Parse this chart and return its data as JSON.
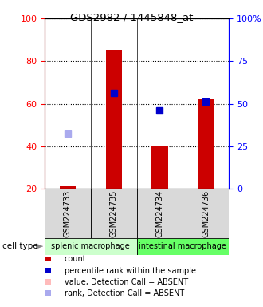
{
  "title": "GDS2982 / 1445848_at",
  "samples": [
    "GSM224733",
    "GSM224735",
    "GSM224734",
    "GSM224736"
  ],
  "cell_type_groups": [
    {
      "label": "splenic macrophage",
      "start": 0,
      "end": 2,
      "color": "#ccffcc"
    },
    {
      "label": "intestinal macrophage",
      "start": 2,
      "end": 4,
      "color": "#66ff66"
    }
  ],
  "count_values": [
    21,
    85,
    40,
    62
  ],
  "rank_values": [
    null,
    65,
    57,
    61
  ],
  "absent_rank_values": [
    46,
    null,
    null,
    null
  ],
  "absent_count_values": [
    null,
    null,
    null,
    null
  ],
  "ylim_left": [
    20,
    100
  ],
  "ylim_right": [
    0,
    100
  ],
  "yticks_left": [
    20,
    40,
    60,
    80,
    100
  ],
  "ytick_labels_right": [
    "0",
    "25",
    "50",
    "75",
    "100%"
  ],
  "yticks_right": [
    0,
    25,
    50,
    75,
    100
  ],
  "bar_color": "#cc0000",
  "rank_color": "#0000cc",
  "absent_rank_color": "#aaaaee",
  "absent_count_color": "#ffbbbb",
  "bar_width": 0.35,
  "marker_size": 6,
  "background_color": "#ffffff"
}
